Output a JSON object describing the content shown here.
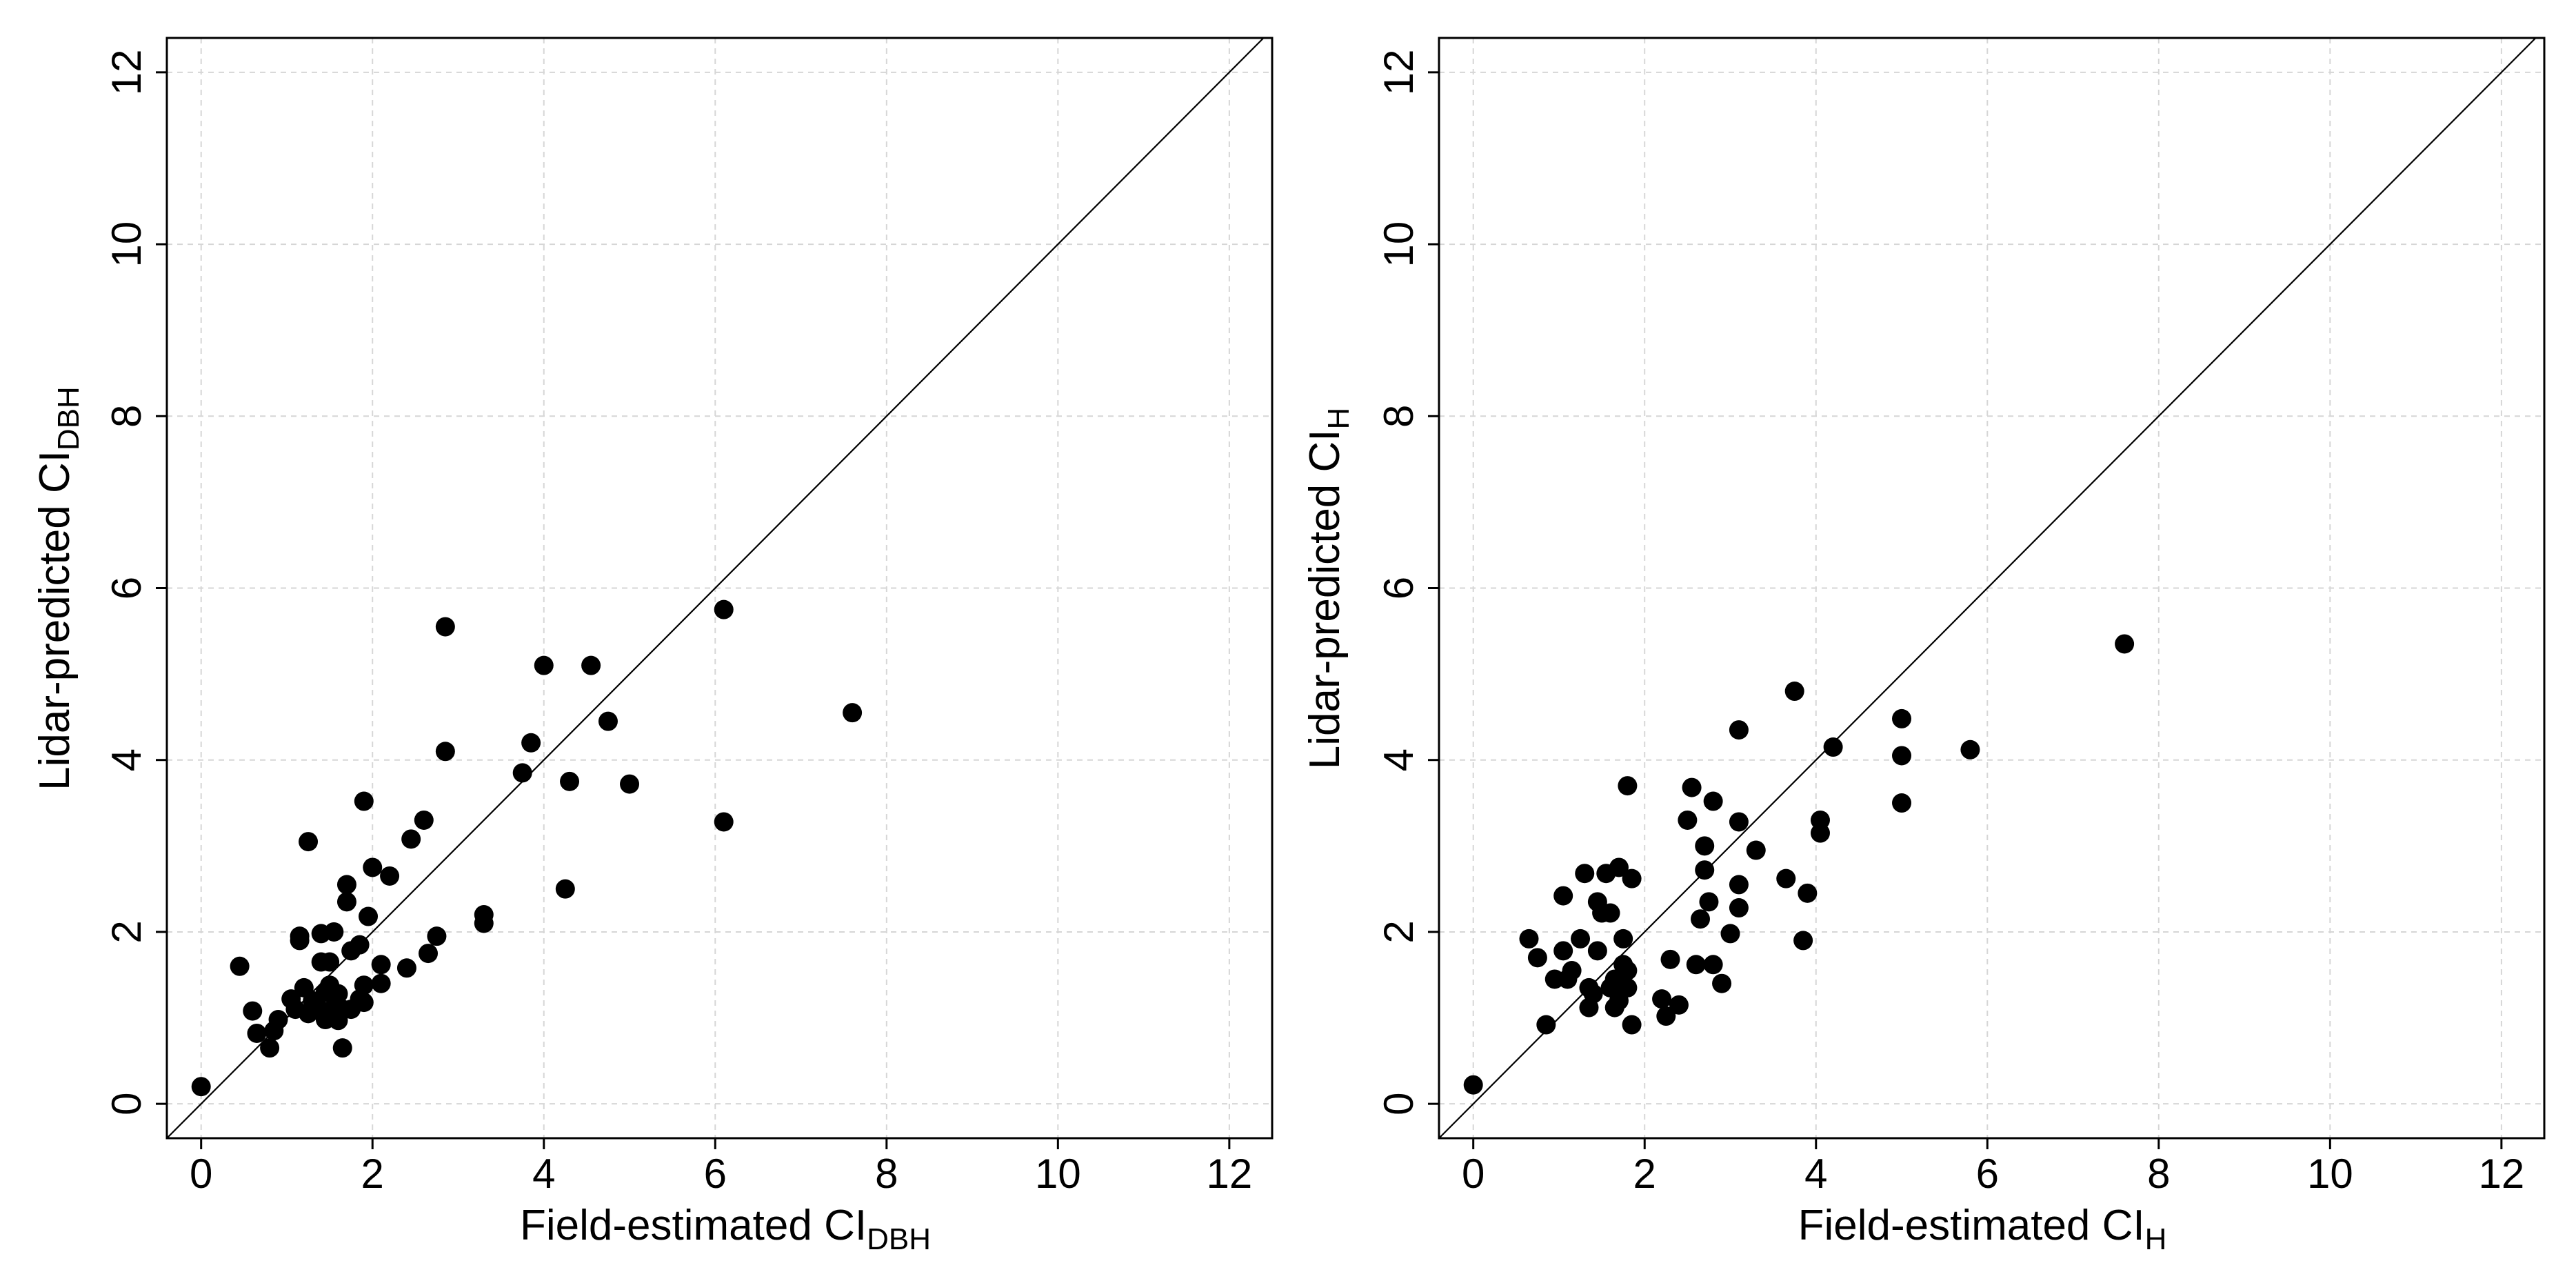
{
  "chart_data": [
    {
      "type": "scatter",
      "xlabel_main": "Field-estimated CI",
      "xlabel_sub": "DBH",
      "ylabel_main": "Lidar-predicted CI",
      "ylabel_sub": "DBH",
      "xlim": [
        -0.4,
        12.5
      ],
      "ylim": [
        -0.4,
        12.4
      ],
      "xticks": [
        0,
        2,
        4,
        6,
        8,
        10,
        12
      ],
      "yticks": [
        0,
        2,
        4,
        6,
        8,
        10,
        12
      ],
      "xtick_labels": [
        "0",
        "2",
        "4",
        "6",
        "8",
        "10",
        "12"
      ],
      "ytick_labels": [
        "0",
        "2",
        "4",
        "6",
        "8",
        "10",
        "12"
      ],
      "grid": true,
      "reference_line": "1:1",
      "points": [
        {
          "x": 0.0,
          "y": 0.2
        },
        {
          "x": 0.45,
          "y": 1.6
        },
        {
          "x": 0.6,
          "y": 1.08
        },
        {
          "x": 0.65,
          "y": 0.82
        },
        {
          "x": 0.8,
          "y": 0.65
        },
        {
          "x": 0.85,
          "y": 0.85
        },
        {
          "x": 0.9,
          "y": 0.98
        },
        {
          "x": 1.05,
          "y": 1.22
        },
        {
          "x": 1.1,
          "y": 1.1
        },
        {
          "x": 1.15,
          "y": 1.95
        },
        {
          "x": 1.15,
          "y": 1.9
        },
        {
          "x": 1.2,
          "y": 1.35
        },
        {
          "x": 1.25,
          "y": 1.05
        },
        {
          "x": 1.25,
          "y": 3.05
        },
        {
          "x": 1.3,
          "y": 1.2
        },
        {
          "x": 1.35,
          "y": 1.15
        },
        {
          "x": 1.4,
          "y": 1.65
        },
        {
          "x": 1.4,
          "y": 1.98
        },
        {
          "x": 1.45,
          "y": 1.3
        },
        {
          "x": 1.45,
          "y": 0.98
        },
        {
          "x": 1.5,
          "y": 1.38
        },
        {
          "x": 1.5,
          "y": 1.65
        },
        {
          "x": 1.55,
          "y": 2.0
        },
        {
          "x": 1.55,
          "y": 1.12
        },
        {
          "x": 1.6,
          "y": 1.28
        },
        {
          "x": 1.6,
          "y": 0.97
        },
        {
          "x": 1.65,
          "y": 0.65
        },
        {
          "x": 1.65,
          "y": 1.1
        },
        {
          "x": 1.7,
          "y": 2.35
        },
        {
          "x": 1.7,
          "y": 2.55
        },
        {
          "x": 1.75,
          "y": 1.78
        },
        {
          "x": 1.75,
          "y": 1.1
        },
        {
          "x": 1.85,
          "y": 1.85
        },
        {
          "x": 1.85,
          "y": 1.22
        },
        {
          "x": 1.9,
          "y": 1.38
        },
        {
          "x": 1.9,
          "y": 1.18
        },
        {
          "x": 1.9,
          "y": 3.52
        },
        {
          "x": 1.95,
          "y": 2.18
        },
        {
          "x": 2.0,
          "y": 2.75
        },
        {
          "x": 2.1,
          "y": 1.62
        },
        {
          "x": 2.1,
          "y": 1.4
        },
        {
          "x": 2.2,
          "y": 2.65
        },
        {
          "x": 2.4,
          "y": 1.58
        },
        {
          "x": 2.45,
          "y": 3.08
        },
        {
          "x": 2.6,
          "y": 3.3
        },
        {
          "x": 2.65,
          "y": 1.75
        },
        {
          "x": 2.75,
          "y": 1.95
        },
        {
          "x": 2.85,
          "y": 5.55
        },
        {
          "x": 2.85,
          "y": 4.1
        },
        {
          "x": 3.3,
          "y": 2.2
        },
        {
          "x": 3.3,
          "y": 2.1
        },
        {
          "x": 3.75,
          "y": 3.85
        },
        {
          "x": 3.85,
          "y": 4.2
        },
        {
          "x": 4.0,
          "y": 5.1
        },
        {
          "x": 4.25,
          "y": 2.5
        },
        {
          "x": 4.3,
          "y": 3.75
        },
        {
          "x": 4.55,
          "y": 5.1
        },
        {
          "x": 4.75,
          "y": 4.45
        },
        {
          "x": 5.0,
          "y": 3.72
        },
        {
          "x": 6.1,
          "y": 5.75
        },
        {
          "x": 6.1,
          "y": 3.28
        },
        {
          "x": 7.6,
          "y": 4.55
        }
      ]
    },
    {
      "type": "scatter",
      "xlabel_main": "Field-estimated CI",
      "xlabel_sub": "H",
      "ylabel_main": "Lidar-predicted CI",
      "ylabel_sub": "H",
      "xlim": [
        -0.4,
        12.5
      ],
      "ylim": [
        -0.4,
        12.4
      ],
      "xticks": [
        0,
        2,
        4,
        6,
        8,
        10,
        12
      ],
      "yticks": [
        0,
        2,
        4,
        6,
        8,
        10,
        12
      ],
      "xtick_labels": [
        "0",
        "2",
        "4",
        "6",
        "8",
        "10",
        "12"
      ],
      "ytick_labels": [
        "0",
        "2",
        "4",
        "6",
        "8",
        "10",
        "12"
      ],
      "grid": true,
      "reference_line": "1:1",
      "points": [
        {
          "x": 0.0,
          "y": 0.22
        },
        {
          "x": 0.65,
          "y": 1.92
        },
        {
          "x": 0.75,
          "y": 1.7
        },
        {
          "x": 0.85,
          "y": 0.92
        },
        {
          "x": 0.95,
          "y": 1.45
        },
        {
          "x": 1.05,
          "y": 2.42
        },
        {
          "x": 1.05,
          "y": 1.78
        },
        {
          "x": 1.1,
          "y": 1.45
        },
        {
          "x": 1.15,
          "y": 1.55
        },
        {
          "x": 1.25,
          "y": 1.92
        },
        {
          "x": 1.3,
          "y": 2.68
        },
        {
          "x": 1.35,
          "y": 1.35
        },
        {
          "x": 1.35,
          "y": 1.12
        },
        {
          "x": 1.4,
          "y": 1.28
        },
        {
          "x": 1.45,
          "y": 2.35
        },
        {
          "x": 1.45,
          "y": 1.78
        },
        {
          "x": 1.5,
          "y": 2.22
        },
        {
          "x": 1.55,
          "y": 2.68
        },
        {
          "x": 1.6,
          "y": 1.35
        },
        {
          "x": 1.6,
          "y": 2.22
        },
        {
          "x": 1.65,
          "y": 1.45
        },
        {
          "x": 1.65,
          "y": 1.12
        },
        {
          "x": 1.7,
          "y": 2.75
        },
        {
          "x": 1.7,
          "y": 1.2
        },
        {
          "x": 1.75,
          "y": 1.92
        },
        {
          "x": 1.75,
          "y": 1.62
        },
        {
          "x": 1.8,
          "y": 1.35
        },
        {
          "x": 1.8,
          "y": 3.7
        },
        {
          "x": 1.8,
          "y": 1.55
        },
        {
          "x": 1.85,
          "y": 2.62
        },
        {
          "x": 1.85,
          "y": 0.92
        },
        {
          "x": 2.2,
          "y": 1.22
        },
        {
          "x": 2.25,
          "y": 1.02
        },
        {
          "x": 2.3,
          "y": 1.68
        },
        {
          "x": 2.4,
          "y": 1.15
        },
        {
          "x": 2.5,
          "y": 3.3
        },
        {
          "x": 2.55,
          "y": 3.68
        },
        {
          "x": 2.6,
          "y": 1.62
        },
        {
          "x": 2.65,
          "y": 2.15
        },
        {
          "x": 2.7,
          "y": 2.72
        },
        {
          "x": 2.7,
          "y": 3.0
        },
        {
          "x": 2.75,
          "y": 2.35
        },
        {
          "x": 2.8,
          "y": 3.52
        },
        {
          "x": 2.8,
          "y": 1.62
        },
        {
          "x": 2.9,
          "y": 1.4
        },
        {
          "x": 3.0,
          "y": 1.98
        },
        {
          "x": 3.1,
          "y": 2.28
        },
        {
          "x": 3.1,
          "y": 2.55
        },
        {
          "x": 3.1,
          "y": 4.35
        },
        {
          "x": 3.1,
          "y": 3.28
        },
        {
          "x": 3.3,
          "y": 2.95
        },
        {
          "x": 3.65,
          "y": 2.62
        },
        {
          "x": 3.75,
          "y": 4.8
        },
        {
          "x": 3.85,
          "y": 1.9
        },
        {
          "x": 3.9,
          "y": 2.45
        },
        {
          "x": 4.05,
          "y": 3.3
        },
        {
          "x": 4.05,
          "y": 3.15
        },
        {
          "x": 4.2,
          "y": 4.15
        },
        {
          "x": 5.0,
          "y": 4.48
        },
        {
          "x": 5.0,
          "y": 4.05
        },
        {
          "x": 5.0,
          "y": 3.5
        },
        {
          "x": 5.8,
          "y": 4.12
        },
        {
          "x": 7.6,
          "y": 5.35
        }
      ]
    }
  ]
}
